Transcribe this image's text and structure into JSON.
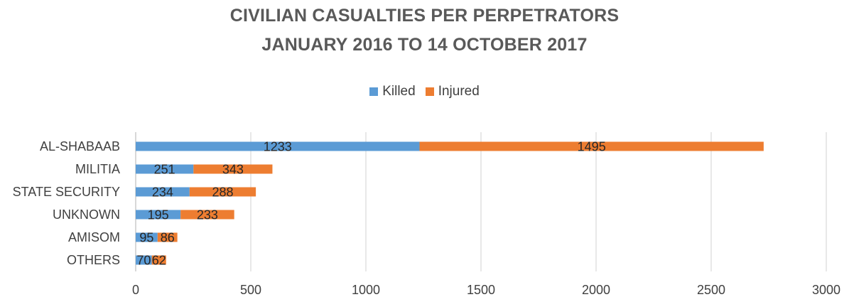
{
  "chart_data": {
    "type": "bar",
    "orientation": "horizontal",
    "stacked": true,
    "title": "CIVILIAN CASUALTIES PER PERPETRATORS",
    "subtitle": "JANUARY 2016 TO 14 OCTOBER 2017",
    "categories": [
      "AL-SHABAAB",
      "MILITIA",
      "STATE SECURITY",
      "UNKNOWN",
      "AMISOM",
      "OTHERS"
    ],
    "series": [
      {
        "name": "Killed",
        "values": [
          1233,
          251,
          234,
          195,
          95,
          70
        ],
        "color": "#5b9bd5"
      },
      {
        "name": "Injured",
        "values": [
          1495,
          343,
          288,
          233,
          86,
          62
        ],
        "color": "#ed7d31"
      }
    ],
    "xlim": [
      0,
      3000
    ],
    "xticks": [
      0,
      500,
      1000,
      1500,
      2000,
      2500,
      3000
    ],
    "xlabel": "",
    "ylabel": "",
    "grid": true,
    "legend_position": "top"
  }
}
